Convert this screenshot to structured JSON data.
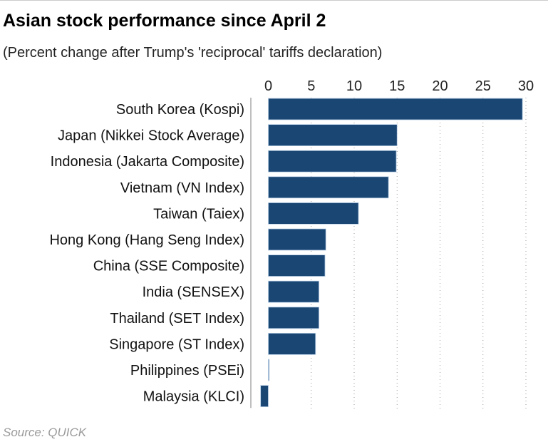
{
  "chart_data": {
    "type": "bar",
    "orientation": "horizontal",
    "title": "Asian stock performance since April 2",
    "subtitle": "(Percent change after Trump's 'reciprocal' tariffs declaration)",
    "source": "Source: QUICK",
    "categories": [
      "South Korea (Kospi)",
      "Japan (Nikkei Stock Average)",
      "Indonesia (Jakarta Composite)",
      "Vietnam (VN Index)",
      "Taiwan (Taiex)",
      "Hong Kong (Hang Seng Index)",
      "China (SSE Composite)",
      "India (SENSEX)",
      "Thailand (SET Index)",
      "Singapore (ST Index)",
      "Philippines (PSEi)",
      "Malaysia (KLCI)"
    ],
    "values": [
      29.6,
      15.0,
      14.9,
      14.0,
      10.5,
      6.7,
      6.6,
      5.9,
      5.9,
      5.5,
      0.1,
      -0.9
    ],
    "xticks": [
      "0",
      "5",
      "10",
      "15",
      "20",
      "25",
      "30"
    ],
    "xlim": [
      -2,
      30.5
    ],
    "grid": "vertical dotted",
    "bar_color": "#1a4674"
  }
}
